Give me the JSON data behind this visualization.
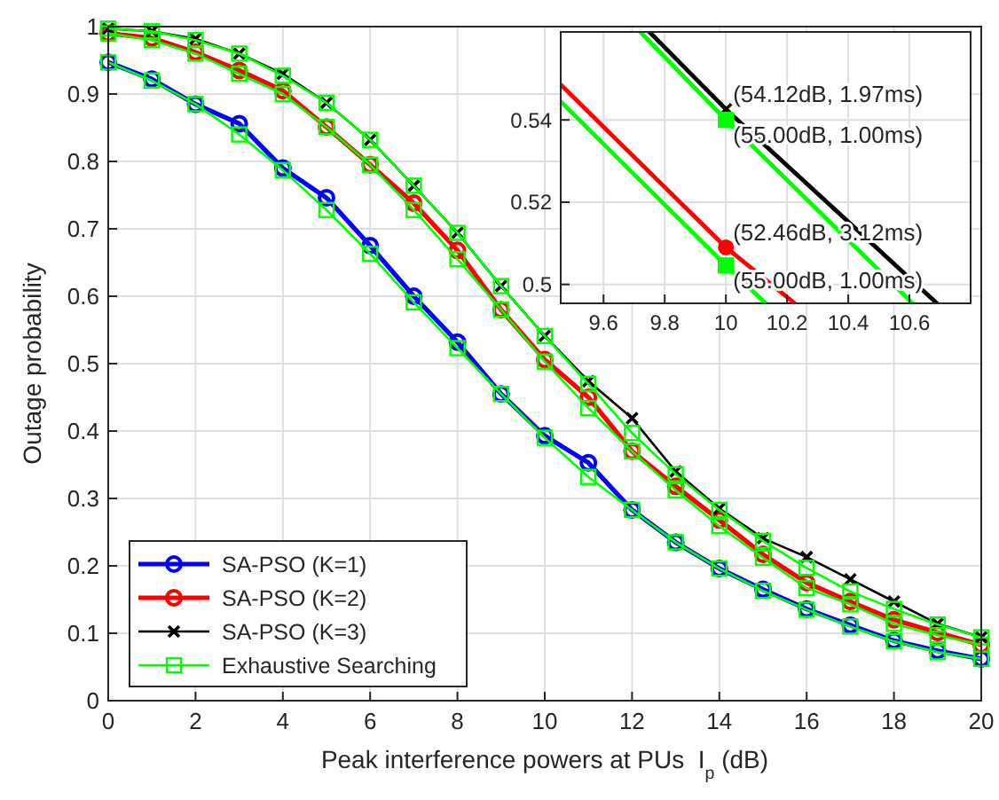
{
  "chart_data": [
    {
      "type": "line",
      "xlabel": "Peak interference powers at PUs  I$_{p}$ (dB)",
      "ylabel": "Outage probability",
      "xlim": [
        0,
        20
      ],
      "ylim": [
        0,
        1
      ],
      "xticks": [
        0,
        2,
        4,
        6,
        8,
        10,
        12,
        14,
        16,
        18,
        20
      ],
      "yticks": [
        0,
        0.1,
        0.2,
        0.3,
        0.4,
        0.5,
        0.6,
        0.7,
        0.8,
        0.9,
        1
      ],
      "grid": true,
      "legend": "bottom left",
      "x": [
        0,
        1,
        2,
        3,
        4,
        5,
        6,
        7,
        8,
        9,
        10,
        11,
        12,
        13,
        14,
        15,
        16,
        17,
        18,
        19,
        20
      ],
      "series": [
        {
          "name": "SA-PSO (K=1)",
          "color": "#0000ff",
          "marker": "circle",
          "values": [
            0.947,
            0.922,
            0.885,
            0.856,
            0.79,
            0.746,
            0.675,
            0.6,
            0.532,
            0.455,
            0.393,
            0.353,
            0.283,
            0.235,
            0.196,
            0.165,
            0.136,
            0.112,
            0.089,
            0.074,
            0.062
          ]
        },
        {
          "name": "SA-PSO (K=2)",
          "color": "#ff0000",
          "marker": "circle",
          "values": [
            0.99,
            0.983,
            0.962,
            0.935,
            0.905,
            0.851,
            0.795,
            0.738,
            0.668,
            0.58,
            0.506,
            0.45,
            0.37,
            0.318,
            0.268,
            0.217,
            0.175,
            0.147,
            0.12,
            0.101,
            0.083
          ]
        },
        {
          "name": "SA-PSO (K=3)",
          "color": "#000000",
          "marker": "cross",
          "values": [
            0.997,
            0.993,
            0.982,
            0.96,
            0.93,
            0.887,
            0.832,
            0.764,
            0.694,
            0.615,
            0.541,
            0.474,
            0.419,
            0.34,
            0.285,
            0.241,
            0.213,
            0.18,
            0.147,
            0.114,
            0.094
          ]
        },
        {
          "name": "Exhaustive Searching",
          "color": "#00ff00",
          "marker": "square",
          "values": [
            0.947,
            0.92,
            0.885,
            0.84,
            0.787,
            0.728,
            0.663,
            0.591,
            0.523,
            0.455,
            0.39,
            0.332,
            0.283,
            0.235,
            0.196,
            0.163,
            0.135,
            0.11,
            0.088,
            0.072,
            0.062
          ]
        },
        {
          "color": "#00ff00",
          "marker": "square",
          "values": [
            0.99,
            0.98,
            0.96,
            0.93,
            0.9,
            0.851,
            0.795,
            0.728,
            0.655,
            0.58,
            0.503,
            0.434,
            0.37,
            0.312,
            0.259,
            0.212,
            0.167,
            0.143,
            0.114,
            0.097,
            0.083
          ]
        },
        {
          "color": "#00ff00",
          "marker": "square",
          "values": [
            0.997,
            0.993,
            0.98,
            0.96,
            0.927,
            0.887,
            0.832,
            0.764,
            0.694,
            0.615,
            0.541,
            0.47,
            0.397,
            0.336,
            0.283,
            0.237,
            0.197,
            0.162,
            0.136,
            0.113,
            0.094
          ]
        }
      ]
    },
    {
      "type": "line",
      "xlim": [
        9.46,
        10.8
      ],
      "ylim": [
        0.4954,
        0.5614
      ],
      "xticks": [
        9.6,
        9.8,
        10,
        10.2,
        10.4,
        10.6
      ],
      "yticks": [
        0.5,
        0.52,
        0.54
      ],
      "grid": true,
      "series": [
        {
          "color": "#000000",
          "marker": "none",
          "x": [
            9.75,
            10,
            10.69
          ],
          "values": [
            0.5614,
            0.5426,
            0.4954
          ]
        },
        {
          "color": "#00ff00",
          "marker": "none",
          "x": [
            9.72,
            10,
            10.61
          ],
          "values": [
            0.5614,
            0.54,
            0.4954
          ]
        },
        {
          "color": "#ff0000",
          "marker": "none",
          "x": [
            9.46,
            10,
            10.225
          ],
          "values": [
            0.5486,
            0.509,
            0.4954
          ]
        },
        {
          "color": "#00ff00",
          "marker": "none",
          "x": [
            9.46,
            10,
            10.13
          ],
          "values": [
            0.5445,
            0.5046,
            0.4954
          ]
        },
        {
          "type": "scatter",
          "color": "#000000",
          "marker": "cross",
          "x": [
            10
          ],
          "values": [
            0.5426
          ]
        },
        {
          "type": "scatter",
          "color": "#00ff00",
          "marker": "square",
          "x": [
            10
          ],
          "values": [
            0.54
          ]
        },
        {
          "type": "scatter",
          "color": "#ff0000",
          "marker": "circle",
          "x": [
            10
          ],
          "values": [
            0.509
          ]
        },
        {
          "type": "scatter",
          "color": "#00ff00",
          "marker": "square",
          "x": [
            10
          ],
          "values": [
            0.5046
          ]
        }
      ],
      "annotations": [
        "(54.12dB, 1.97ms)",
        "(55.00dB, 1.00ms)",
        "(52.46dB, 3.12ms)",
        "(55.00dB, 1.00ms)"
      ]
    }
  ]
}
